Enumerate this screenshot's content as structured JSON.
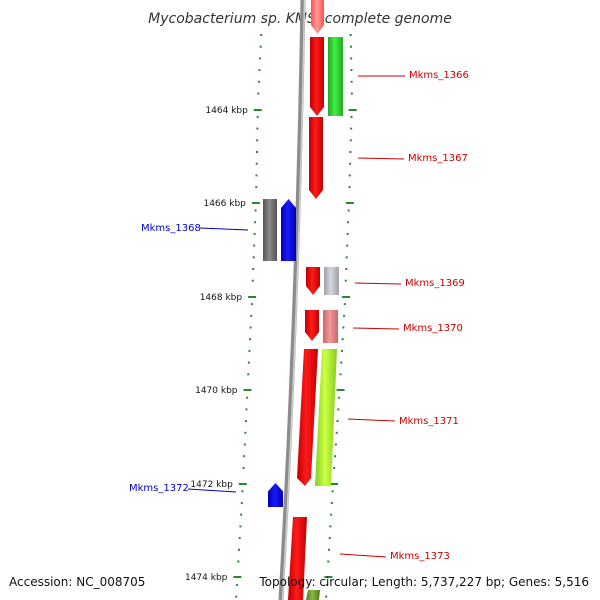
{
  "title": "Mycobacterium sp. KMS, complete genome",
  "footer": {
    "accession": "Accession: NC_008705",
    "summary": "Topology: circular; Length: 5,737,227 bp; Genes: 5,516"
  },
  "colors": {
    "backbone": "#8c8c8c",
    "tick": "#2a8a2a",
    "label_forward": "#cc0000",
    "label_reverse": "#0000cc"
  },
  "kbp_labels": [
    "1464 kbp",
    "1466 kbp",
    "1468 kbp",
    "1470 kbp",
    "1472 kbp",
    "1474 kbp"
  ],
  "genes": [
    {
      "name": "Mkms_1366",
      "label": "Mkms_1366",
      "strand": "+",
      "labelled": true
    },
    {
      "name": "Mkms_1367",
      "label": "Mkms_1367",
      "strand": "+",
      "labelled": true
    },
    {
      "name": "Mkms_1368",
      "label": "Mkms_1368",
      "strand": "-",
      "labelled": true
    },
    {
      "name": "Mkms_1369",
      "label": "Mkms_1369",
      "strand": "+",
      "labelled": true
    },
    {
      "name": "Mkms_1370",
      "label": "Mkms_1370",
      "strand": "+",
      "labelled": true
    },
    {
      "name": "Mkms_1371",
      "label": "Mkms_1371",
      "strand": "+",
      "labelled": true
    },
    {
      "name": "Mkms_1372",
      "label": "Mkms_1372",
      "strand": "-",
      "labelled": true
    },
    {
      "name": "Mkms_1373",
      "label": "Mkms_1373",
      "strand": "+",
      "labelled": true
    }
  ]
}
